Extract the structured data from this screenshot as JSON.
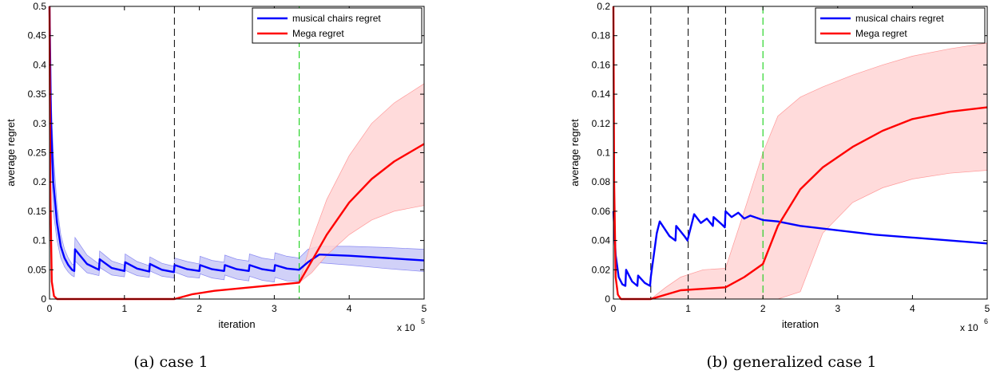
{
  "chart_data": [
    {
      "type": "line",
      "xlabel": "iteration",
      "ylabel": "average regret",
      "x_multiplier_label": "x 10",
      "x_exponent": "5",
      "caption": "(a) case 1",
      "xlim": [
        0,
        5
      ],
      "ylim": [
        0,
        0.5
      ],
      "xticks": [
        "0",
        "1",
        "2",
        "3",
        "4",
        "5"
      ],
      "yticks": [
        "0",
        "0.05",
        "0.1",
        "0.15",
        "0.2",
        "0.25",
        "0.3",
        "0.35",
        "0.4",
        "0.45",
        "0.5"
      ],
      "legend_position": "top-right",
      "vlines": [
        {
          "x": 1.667,
          "color": "#000000"
        },
        {
          "x": 3.333,
          "color": "#00cc00"
        }
      ],
      "series": [
        {
          "name": "musical chairs regret",
          "color": "#0000ff",
          "x": [
            0,
            0.02,
            0.05,
            0.1,
            0.15,
            0.2,
            0.25,
            0.3,
            0.33,
            0.34,
            0.5,
            0.66,
            0.67,
            0.83,
            1.0,
            1.01,
            1.17,
            1.33,
            1.34,
            1.5,
            1.66,
            1.67,
            1.84,
            2.0,
            2.01,
            2.17,
            2.33,
            2.34,
            2.5,
            2.66,
            2.67,
            2.84,
            3.0,
            3.01,
            3.17,
            3.33,
            3.45,
            3.6,
            4.0,
            4.5,
            5.0
          ],
          "y": [
            0.5,
            0.3,
            0.2,
            0.13,
            0.09,
            0.07,
            0.058,
            0.05,
            0.048,
            0.085,
            0.06,
            0.05,
            0.068,
            0.053,
            0.048,
            0.063,
            0.052,
            0.047,
            0.06,
            0.05,
            0.046,
            0.058,
            0.051,
            0.048,
            0.058,
            0.051,
            0.048,
            0.058,
            0.051,
            0.048,
            0.058,
            0.051,
            0.048,
            0.058,
            0.052,
            0.05,
            0.063,
            0.076,
            0.074,
            0.07,
            0.066
          ],
          "band_upper": [
            0.5,
            0.35,
            0.25,
            0.16,
            0.11,
            0.085,
            0.07,
            0.06,
            0.058,
            0.105,
            0.075,
            0.06,
            0.082,
            0.065,
            0.058,
            0.077,
            0.064,
            0.057,
            0.072,
            0.061,
            0.056,
            0.07,
            0.064,
            0.06,
            0.073,
            0.066,
            0.063,
            0.075,
            0.068,
            0.065,
            0.077,
            0.07,
            0.067,
            0.079,
            0.073,
            0.07,
            0.085,
            0.09,
            0.09,
            0.088,
            0.085
          ],
          "band_lower": [
            0.5,
            0.25,
            0.15,
            0.1,
            0.07,
            0.055,
            0.046,
            0.04,
            0.038,
            0.065,
            0.045,
            0.04,
            0.054,
            0.041,
            0.038,
            0.049,
            0.04,
            0.037,
            0.048,
            0.039,
            0.036,
            0.046,
            0.038,
            0.036,
            0.043,
            0.036,
            0.033,
            0.041,
            0.034,
            0.031,
            0.039,
            0.032,
            0.029,
            0.037,
            0.031,
            0.03,
            0.041,
            0.062,
            0.058,
            0.052,
            0.047
          ]
        },
        {
          "name": "Mega regret",
          "color": "#ff0000",
          "x": [
            0,
            0.01,
            0.03,
            0.06,
            0.1,
            1.667,
            1.9,
            2.2,
            2.6,
            3.0,
            3.333,
            3.5,
            3.7,
            4.0,
            4.3,
            4.6,
            5.0
          ],
          "y": [
            0.5,
            0.2,
            0.03,
            0.005,
            0.0,
            0.0,
            0.008,
            0.014,
            0.019,
            0.024,
            0.028,
            0.065,
            0.11,
            0.165,
            0.205,
            0.235,
            0.265
          ],
          "band_upper": [
            0.5,
            0.2,
            0.03,
            0.005,
            0.0,
            0.0,
            0.008,
            0.014,
            0.019,
            0.024,
            0.028,
            0.1,
            0.17,
            0.245,
            0.3,
            0.335,
            0.368
          ],
          "band_lower": [
            0.5,
            0.2,
            0.03,
            0.005,
            0.0,
            0.0,
            0.008,
            0.014,
            0.019,
            0.024,
            0.028,
            0.045,
            0.075,
            0.11,
            0.135,
            0.15,
            0.16
          ]
        }
      ]
    },
    {
      "type": "line",
      "xlabel": "iteration",
      "ylabel": "average regret",
      "x_multiplier_label": "x 10",
      "x_exponent": "6",
      "caption": "(b) generalized case 1",
      "xlim": [
        0,
        5
      ],
      "ylim": [
        0,
        0.2
      ],
      "xticks": [
        "0",
        "1",
        "2",
        "3",
        "4",
        "5"
      ],
      "yticks": [
        "0",
        "0.02",
        "0.04",
        "0.06",
        "0.08",
        "0.1",
        "0.12",
        "0.14",
        "0.16",
        "0.18",
        "0.2"
      ],
      "legend_position": "top-right",
      "vlines": [
        {
          "x": 0.5,
          "color": "#000000"
        },
        {
          "x": 1.0,
          "color": "#000000"
        },
        {
          "x": 1.5,
          "color": "#000000"
        },
        {
          "x": 2.0,
          "color": "#00cc00"
        }
      ],
      "series": [
        {
          "name": "musical chairs regret",
          "color": "#0000ff",
          "x": [
            0,
            0.03,
            0.07,
            0.12,
            0.16,
            0.17,
            0.25,
            0.32,
            0.33,
            0.42,
            0.49,
            0.5,
            0.58,
            0.62,
            0.75,
            0.83,
            0.84,
            0.95,
            0.99,
            1.0,
            1.08,
            1.17,
            1.25,
            1.33,
            1.34,
            1.45,
            1.49,
            1.5,
            1.58,
            1.67,
            1.75,
            1.83,
            2.0,
            2.2,
            2.5,
            3.0,
            3.5,
            4.0,
            4.5,
            5.0
          ],
          "y": [
            0.06,
            0.03,
            0.015,
            0.01,
            0.009,
            0.02,
            0.012,
            0.009,
            0.016,
            0.011,
            0.009,
            0.015,
            0.045,
            0.053,
            0.043,
            0.04,
            0.05,
            0.043,
            0.04,
            0.042,
            0.058,
            0.052,
            0.055,
            0.05,
            0.056,
            0.051,
            0.049,
            0.06,
            0.056,
            0.059,
            0.055,
            0.057,
            0.054,
            0.053,
            0.05,
            0.047,
            0.044,
            0.042,
            0.04,
            0.038
          ]
        },
        {
          "name": "Mega regret",
          "color": "#ff0000",
          "x": [
            0,
            0.01,
            0.03,
            0.06,
            0.1,
            0.5,
            0.7,
            0.9,
            1.2,
            1.5,
            1.75,
            2.0,
            2.2,
            2.5,
            2.8,
            3.2,
            3.6,
            4.0,
            4.5,
            5.0
          ],
          "y": [
            0.2,
            0.08,
            0.015,
            0.003,
            0.0,
            0.0,
            0.003,
            0.006,
            0.007,
            0.008,
            0.015,
            0.024,
            0.05,
            0.075,
            0.09,
            0.104,
            0.115,
            0.123,
            0.128,
            0.131
          ],
          "band_upper": [
            0.2,
            0.08,
            0.015,
            0.003,
            0.0,
            0.0,
            0.008,
            0.015,
            0.02,
            0.021,
            0.06,
            0.1,
            0.125,
            0.138,
            0.145,
            0.153,
            0.16,
            0.166,
            0.171,
            0.175
          ],
          "band_lower": [
            0.2,
            0.08,
            0.015,
            0.003,
            0.0,
            0.0,
            0.0,
            0.0,
            0.0,
            0.0,
            0.0,
            0.0,
            0.0,
            0.005,
            0.045,
            0.066,
            0.076,
            0.082,
            0.086,
            0.088
          ]
        }
      ]
    }
  ]
}
